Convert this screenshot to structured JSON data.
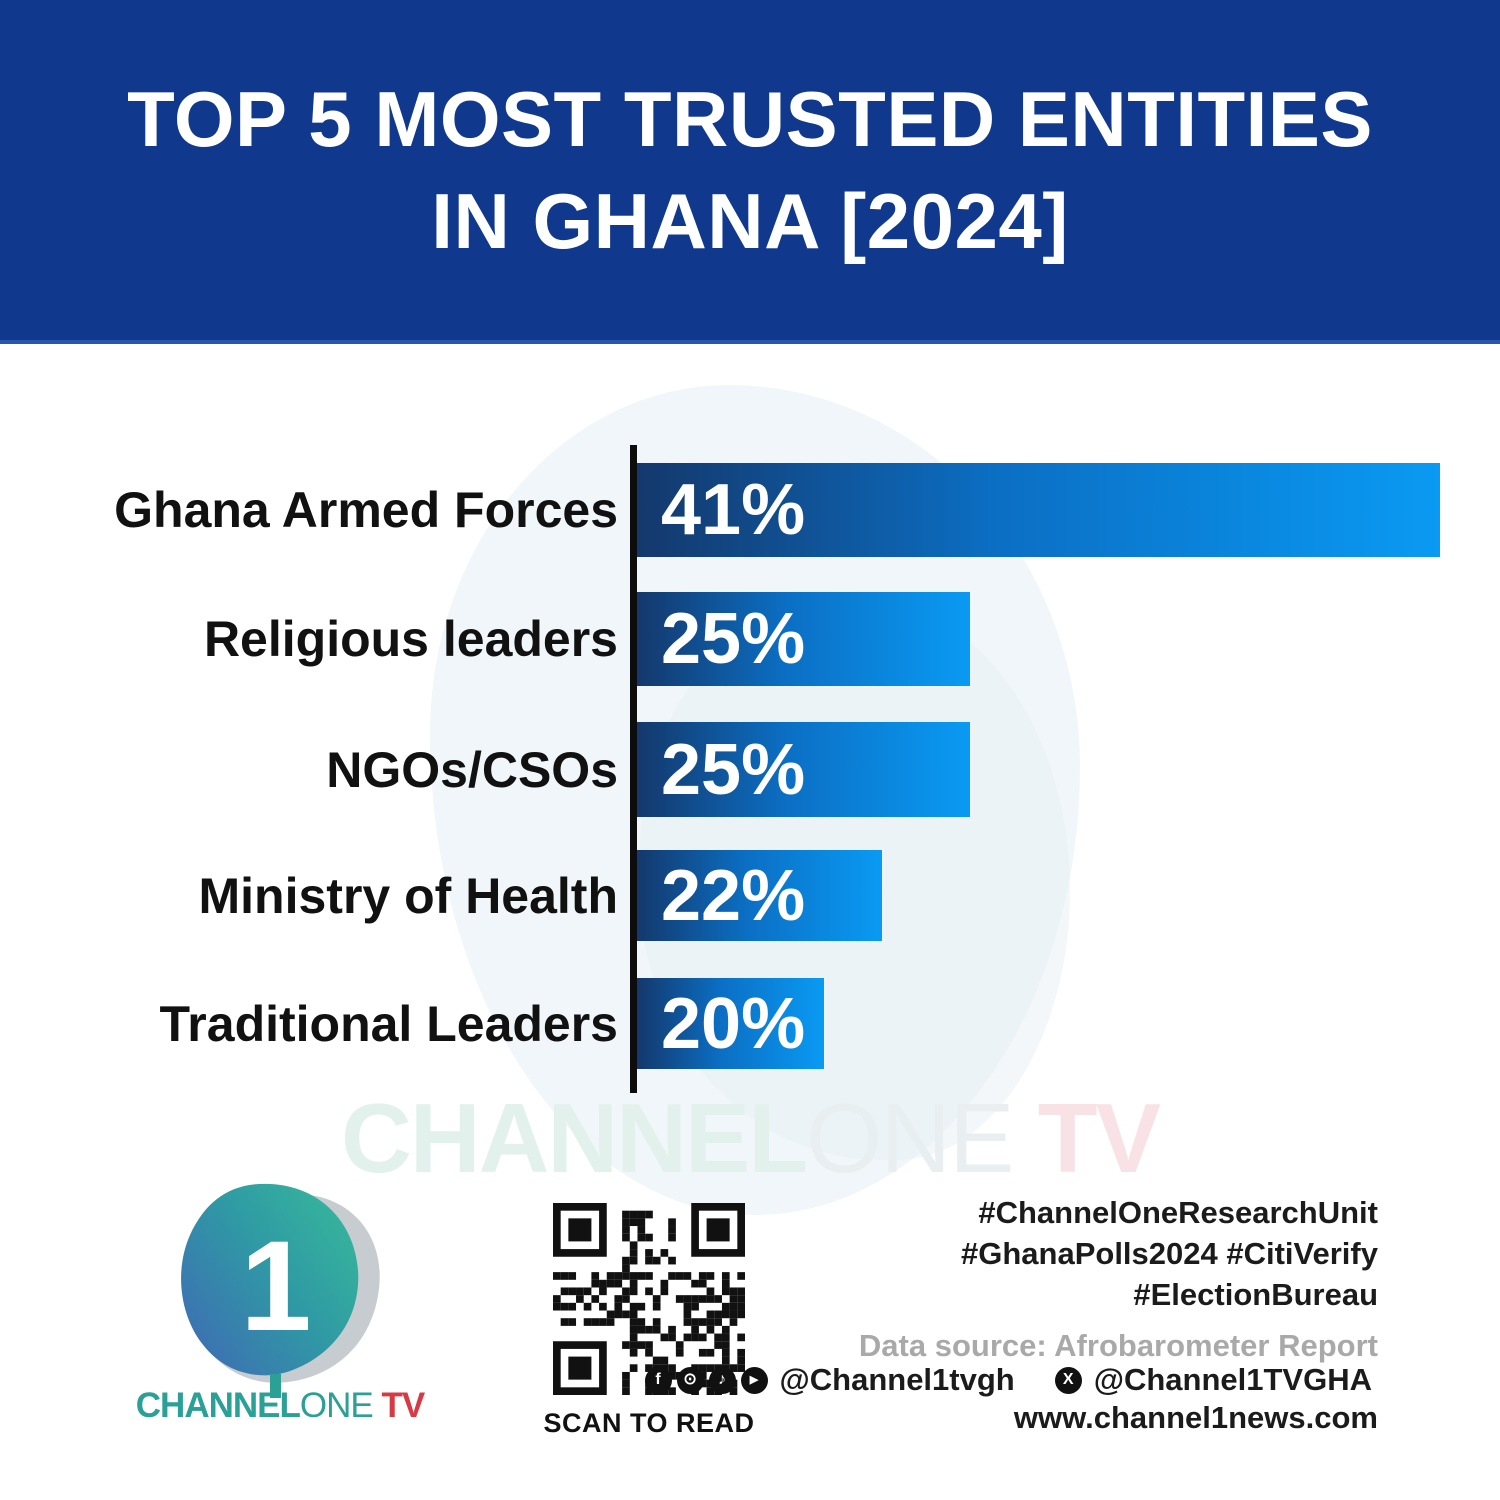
{
  "header": {
    "title_line1": "TOP 5 MOST TRUSTED ENTITIES",
    "title_line2": "IN GHANA [2024]",
    "banner_color": "#10398e"
  },
  "chart_data": {
    "type": "bar",
    "orientation": "horizontal",
    "title": "Top 5 most trusted entities in Ghana (2024)",
    "categories": [
      "Ghana Armed Forces",
      "Religious leaders",
      "NGOs/CSOs",
      "Ministry of Health",
      "Traditional Leaders"
    ],
    "values": [
      41,
      25,
      25,
      22,
      20
    ],
    "value_labels": [
      "41%",
      "25%",
      "25%",
      "22%",
      "20%"
    ],
    "unit": "percent",
    "bar_color_start": "#14386c",
    "bar_color_end": "#0a9af3",
    "axis_color": "#0d0d0d",
    "grid": "off",
    "legend": "none"
  },
  "watermark": {
    "part1": "CHANNEL",
    "part2": "ONE",
    "part3": " TV"
  },
  "footer": {
    "logo": {
      "text_part1": "CHANNEL",
      "text_part2": "ONE",
      "text_part3": " TV",
      "teal": "#2aa096",
      "red": "#d63b44",
      "mark": "channel-one-numeral-1-logo"
    },
    "qr": {
      "name": "qr-code",
      "caption": "SCAN TO READ"
    },
    "hashtags_line1": "#ChannelOneResearchUnit",
    "hashtags_line2": "#GhanaPolls2024 #CitiVerify",
    "hashtags_line3": "#ElectionBureau",
    "data_source": "Data source: Afrobarometer Report",
    "social": {
      "icons": [
        {
          "name": "facebook-icon",
          "glyph": "f"
        },
        {
          "name": "instagram-icon",
          "glyph": "⊙"
        },
        {
          "name": "tiktok-icon",
          "glyph": "♪"
        },
        {
          "name": "youtube-icon",
          "glyph": "▶"
        }
      ],
      "handle1": "@Channel1tvgh",
      "x_icon": {
        "name": "x-icon",
        "glyph": "X"
      },
      "handle2": "@Channel1TVGHA"
    },
    "website": "www.channel1news.com"
  }
}
